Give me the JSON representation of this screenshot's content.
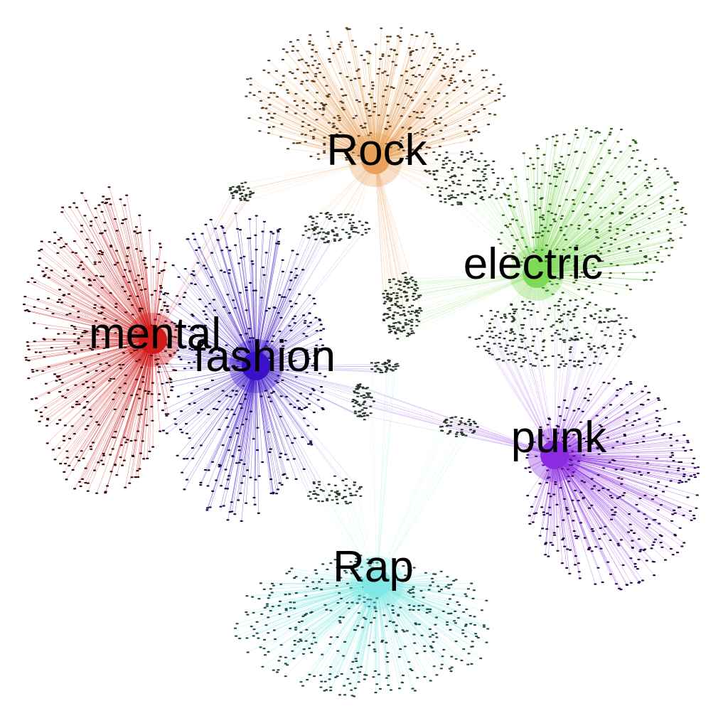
{
  "graph": {
    "clusters": [
      {
        "id": "rock",
        "label": "Rock",
        "color": "#e8a05a",
        "node_color": "#5a3a1a"
      },
      {
        "id": "electric",
        "label": "electric",
        "color": "#7ed957",
        "node_color": "#2f5a1a"
      },
      {
        "id": "mental",
        "label": "mental",
        "color": "#d11a1a",
        "node_color": "#3a0a0a"
      },
      {
        "id": "fashion",
        "label": "fashion",
        "color": "#3a10c8",
        "node_color": "#10104a"
      },
      {
        "id": "punk",
        "label": "punk",
        "color": "#8a2be2",
        "node_color": "#2a0a4a"
      },
      {
        "id": "rap",
        "label": "Rap",
        "color": "#7fe8e4",
        "node_color": "#1f4a4a"
      }
    ]
  }
}
